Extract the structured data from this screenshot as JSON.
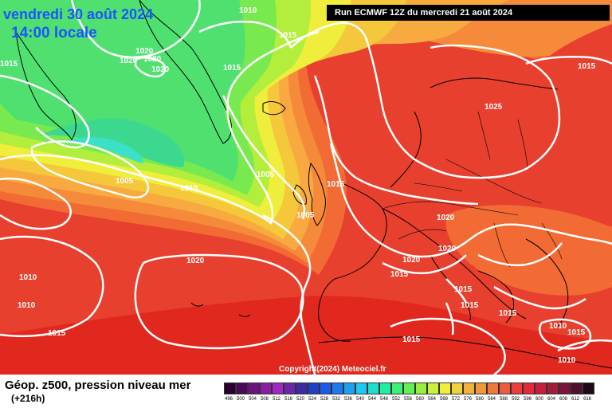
{
  "header": {
    "date": "vendredi 30 août 2024",
    "local_time": "14:00 locale",
    "run": "Run ECMWF 12Z du mercredi 21 août 2024"
  },
  "footer": {
    "title": "Géop. z500, pression niveau mer",
    "lead": "(+216h)",
    "copyright": "Copyright(2024) Meteociel.fr"
  },
  "isobar_labels": [
    "1010",
    "1015",
    "1015",
    "1020",
    "1020",
    "1020",
    "1020",
    "1015",
    "1005",
    "1010",
    "1005",
    "1015",
    "1015",
    "1025",
    "1020",
    "1020",
    "1020",
    "1020",
    "1015",
    "1015",
    "1015",
    "1015",
    "1015",
    "1010",
    "1010",
    "1010",
    "1010",
    "1015",
    "1015",
    "1005"
  ],
  "legend": {
    "labels": [
      "496",
      "500",
      "504",
      "508",
      "512",
      "516",
      "520",
      "524",
      "528",
      "532",
      "536",
      "540",
      "544",
      "548",
      "552",
      "556",
      "560",
      "564",
      "568",
      "572",
      "576",
      "580",
      "584",
      "588",
      "592",
      "596",
      "600",
      "604",
      "608",
      "612",
      "616"
    ],
    "colors": [
      "#2a0030",
      "#4a0a5a",
      "#6a1480",
      "#8a1ea0",
      "#a028c0",
      "#6a28a8",
      "#3c2ca0",
      "#2040c8",
      "#1e5aea",
      "#1e7af0",
      "#1ea0f0",
      "#1ec8f0",
      "#1ee0c8",
      "#1ef0a0",
      "#3cf078",
      "#64f050",
      "#96f03c",
      "#c8f03c",
      "#f0f03c",
      "#f0d23c",
      "#f0b43c",
      "#f0963c",
      "#f0783c",
      "#f05a3c",
      "#f03c3c",
      "#e6283c",
      "#c81e3c",
      "#a01e3c",
      "#7a143c",
      "#501030",
      "#200818"
    ]
  }
}
